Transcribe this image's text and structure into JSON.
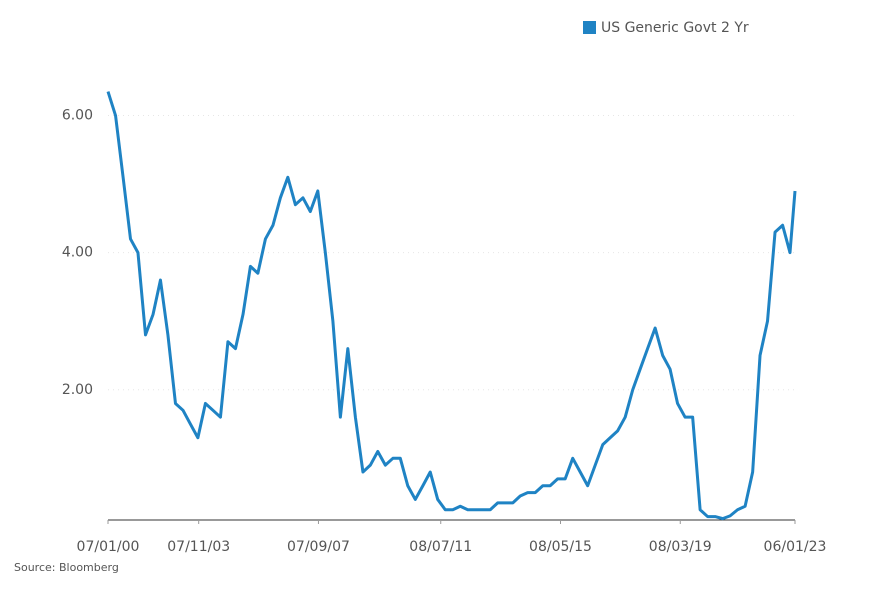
{
  "chart_data": {
    "type": "line",
    "source": "Source: Bloomberg",
    "x": [
      "07/01/00",
      "10/01/00",
      "01/01/01",
      "04/01/01",
      "07/01/01",
      "10/01/01",
      "01/01/02",
      "04/01/02",
      "07/01/02",
      "10/01/02",
      "01/01/03",
      "04/01/03",
      "07/01/03",
      "10/01/03",
      "01/01/04",
      "04/01/04",
      "07/01/04",
      "10/01/04",
      "01/01/05",
      "04/01/05",
      "07/01/05",
      "10/01/05",
      "01/01/06",
      "04/01/06",
      "07/01/06",
      "10/01/06",
      "01/01/07",
      "04/01/07",
      "07/01/07",
      "10/01/07",
      "01/01/08",
      "04/01/08",
      "07/01/08",
      "10/01/08",
      "01/01/09",
      "04/01/09",
      "07/01/09",
      "10/01/09",
      "01/01/10",
      "04/01/10",
      "07/01/10",
      "10/01/10",
      "01/01/11",
      "04/01/11",
      "07/01/11",
      "10/01/11",
      "01/01/12",
      "04/01/12",
      "07/01/12",
      "10/01/12",
      "01/01/13",
      "04/01/13",
      "07/01/13",
      "10/01/13",
      "01/01/14",
      "04/01/14",
      "07/01/14",
      "10/01/14",
      "01/01/15",
      "04/01/15",
      "07/01/15",
      "10/01/15",
      "01/01/16",
      "04/01/16",
      "07/01/16",
      "10/01/16",
      "01/01/17",
      "04/01/17",
      "07/01/17",
      "10/01/17",
      "01/01/18",
      "04/01/18",
      "07/01/18",
      "10/01/18",
      "01/01/19",
      "04/01/19",
      "07/01/19",
      "10/01/19",
      "01/01/20",
      "04/01/20",
      "07/01/20",
      "10/01/20",
      "01/01/21",
      "04/01/21",
      "07/01/21",
      "10/01/21",
      "01/01/22",
      "04/01/22",
      "07/01/22",
      "10/01/22",
      "01/01/23",
      "04/01/23",
      "06/01/23"
    ],
    "series": [
      {
        "name": "US Generic Govt 2 Yr",
        "color": "#1f83c4",
        "values": [
          6.35,
          6.0,
          5.1,
          4.2,
          4.0,
          2.8,
          3.1,
          3.6,
          2.8,
          1.8,
          1.7,
          1.5,
          1.3,
          1.8,
          1.7,
          1.6,
          2.7,
          2.6,
          3.1,
          3.8,
          3.7,
          4.2,
          4.4,
          4.8,
          5.1,
          4.7,
          4.8,
          4.6,
          4.9,
          4.0,
          3.0,
          1.6,
          2.6,
          1.6,
          0.8,
          0.9,
          1.1,
          0.9,
          1.0,
          1.0,
          0.6,
          0.4,
          0.6,
          0.8,
          0.4,
          0.25,
          0.25,
          0.3,
          0.25,
          0.25,
          0.25,
          0.25,
          0.35,
          0.35,
          0.35,
          0.45,
          0.5,
          0.5,
          0.6,
          0.6,
          0.7,
          0.7,
          1.0,
          0.8,
          0.6,
          0.9,
          1.2,
          1.3,
          1.4,
          1.6,
          2.0,
          2.3,
          2.6,
          2.9,
          2.5,
          2.3,
          1.8,
          1.6,
          1.6,
          0.25,
          0.15,
          0.15,
          0.12,
          0.16,
          0.25,
          0.3,
          0.8,
          2.5,
          3.0,
          4.3,
          4.4,
          4.0,
          4.9
        ]
      }
    ],
    "xlim": [
      "07/01/00",
      "06/01/23"
    ],
    "xticks": [
      "07/01/00",
      "07/11/03",
      "07/09/07",
      "08/07/11",
      "08/05/15",
      "08/03/19",
      "06/01/23"
    ],
    "ylim": [
      0.1,
      7.0
    ],
    "yticks": [
      {
        "value": 2,
        "label": "2.00"
      },
      {
        "value": 4,
        "label": "4.00"
      },
      {
        "value": 6,
        "label": "6.00"
      }
    ],
    "grid": true
  }
}
